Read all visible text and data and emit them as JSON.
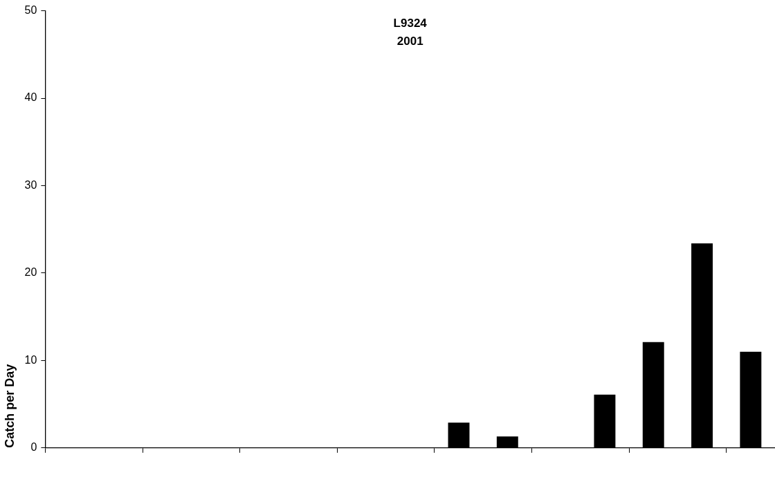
{
  "chart_data": {
    "type": "bar",
    "title": [
      "L9324",
      "2001"
    ],
    "ylabel": "Catch per Day",
    "categories": [
      null,
      null,
      null,
      null,
      null,
      null,
      null,
      null,
      null,
      null,
      null,
      null,
      null,
      null,
      null
    ],
    "values": [
      0,
      0,
      0,
      0,
      0,
      0,
      0,
      0,
      2.9,
      1.3,
      0,
      6.1,
      12.1,
      23.4,
      11.0
    ],
    "color": "#000000",
    "ylim": [
      0,
      50
    ],
    "yticks": [
      0,
      10,
      20,
      30,
      40,
      50
    ],
    "grid": false,
    "legend": false
  }
}
